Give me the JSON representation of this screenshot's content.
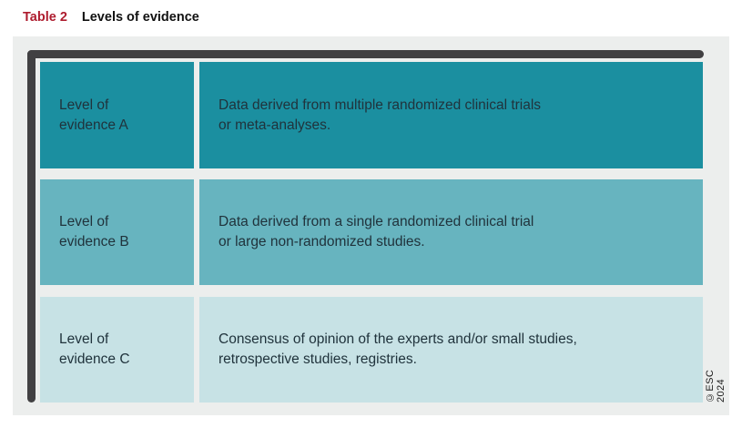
{
  "table_caption": {
    "label": "Table 2",
    "title": "Levels of evidence"
  },
  "colors": {
    "caption_label": "#ae1c2e",
    "panel_bg": "#eceeed",
    "frame": "#414042",
    "cell_text": "#20333c",
    "row_a_bg": "#1b8fa0",
    "row_b_bg": "#67b4bf",
    "row_c_bg": "#c7e2e5"
  },
  "rows": [
    {
      "level": "Level of\nevidence A",
      "description": "Data derived from multiple randomized clinical trials\nor meta-analyses.",
      "bg": "#1b8fa0"
    },
    {
      "level": "Level of\nevidence B",
      "description": "Data derived from a single randomized clinical trial\nor large non-randomized studies.",
      "bg": "#67b4bf"
    },
    {
      "level": "Level of\nevidence C",
      "description": "Consensus of opinion of the experts and/or small studies,\nretrospective studies, registries.",
      "bg": "#c7e2e5"
    }
  ],
  "copyright": "©ESC 2024"
}
